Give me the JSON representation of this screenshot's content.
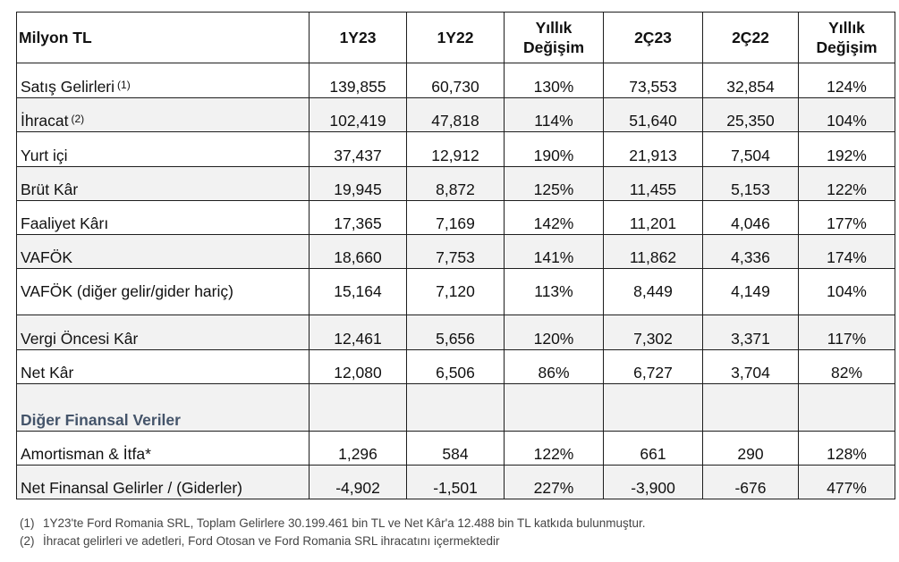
{
  "table": {
    "headers": {
      "label": "Milyon TL",
      "c1": "1Y23",
      "c2": "1Y22",
      "c3_line1": "Yıllık",
      "c3_line2": "Değişim",
      "c4": "2Ç23",
      "c5": "2Ç22",
      "c6_line1": "Yıllık",
      "c6_line2": "Değişim"
    },
    "rows": [
      {
        "label": "Satış Gelirleri",
        "note": "(1)",
        "v": [
          "139,855",
          "60,730",
          "130%",
          "73,553",
          "32,854",
          "124%"
        ]
      },
      {
        "label": "İhracat",
        "note": "(2)",
        "v": [
          "102,419",
          "47,818",
          "114%",
          "51,640",
          "25,350",
          "104%"
        ]
      },
      {
        "label": "Yurt içi",
        "v": [
          "37,437",
          "12,912",
          "190%",
          "21,913",
          "7,504",
          "192%"
        ]
      },
      {
        "label": "Brüt Kâr",
        "v": [
          "19,945",
          "8,872",
          "125%",
          "11,455",
          "5,153",
          "122%"
        ]
      },
      {
        "label": "Faaliyet Kârı",
        "v": [
          "17,365",
          "7,169",
          "142%",
          "11,201",
          "4,046",
          "177%"
        ]
      },
      {
        "label": "VAFÖK",
        "v": [
          "18,660",
          "7,753",
          "141%",
          "11,862",
          "4,336",
          "174%"
        ]
      },
      {
        "label": "VAFÖK (diğer gelir/gider hariç)",
        "v": [
          "15,164",
          "7,120",
          "113%",
          "8,449",
          "4,149",
          "104%"
        ]
      },
      {
        "label": "Vergi Öncesi Kâr",
        "v": [
          "12,461",
          "5,656",
          "120%",
          "7,302",
          "3,371",
          "117%"
        ]
      },
      {
        "label": "Net Kâr",
        "v": [
          "12,080",
          "6,506",
          "86%",
          "6,727",
          "3,704",
          "82%"
        ]
      },
      {
        "label": "Diğer Finansal Veriler"
      },
      {
        "label": "Amortisman & İtfa*",
        "v": [
          "1,296",
          "584",
          "122%",
          "661",
          "290",
          "128%"
        ]
      },
      {
        "label": "Net Finansal Gelirler / (Giderler)",
        "v": [
          "-4,902",
          "-1,501",
          "227%",
          "-3,900",
          "-676",
          "477%"
        ]
      }
    ]
  },
  "footnotes": [
    {
      "no": "(1)",
      "text": "1Y23'te Ford Romania SRL, Toplam Gelirlere 30.199.461 bin TL ve Net Kâr'a 12.488 bin TL katkıda bulunmuştur."
    },
    {
      "no": "(2)",
      "text": "İhracat gelirleri ve adetleri, Ford Otosan ve Ford Romania SRL ihracatını içermektedir"
    }
  ]
}
